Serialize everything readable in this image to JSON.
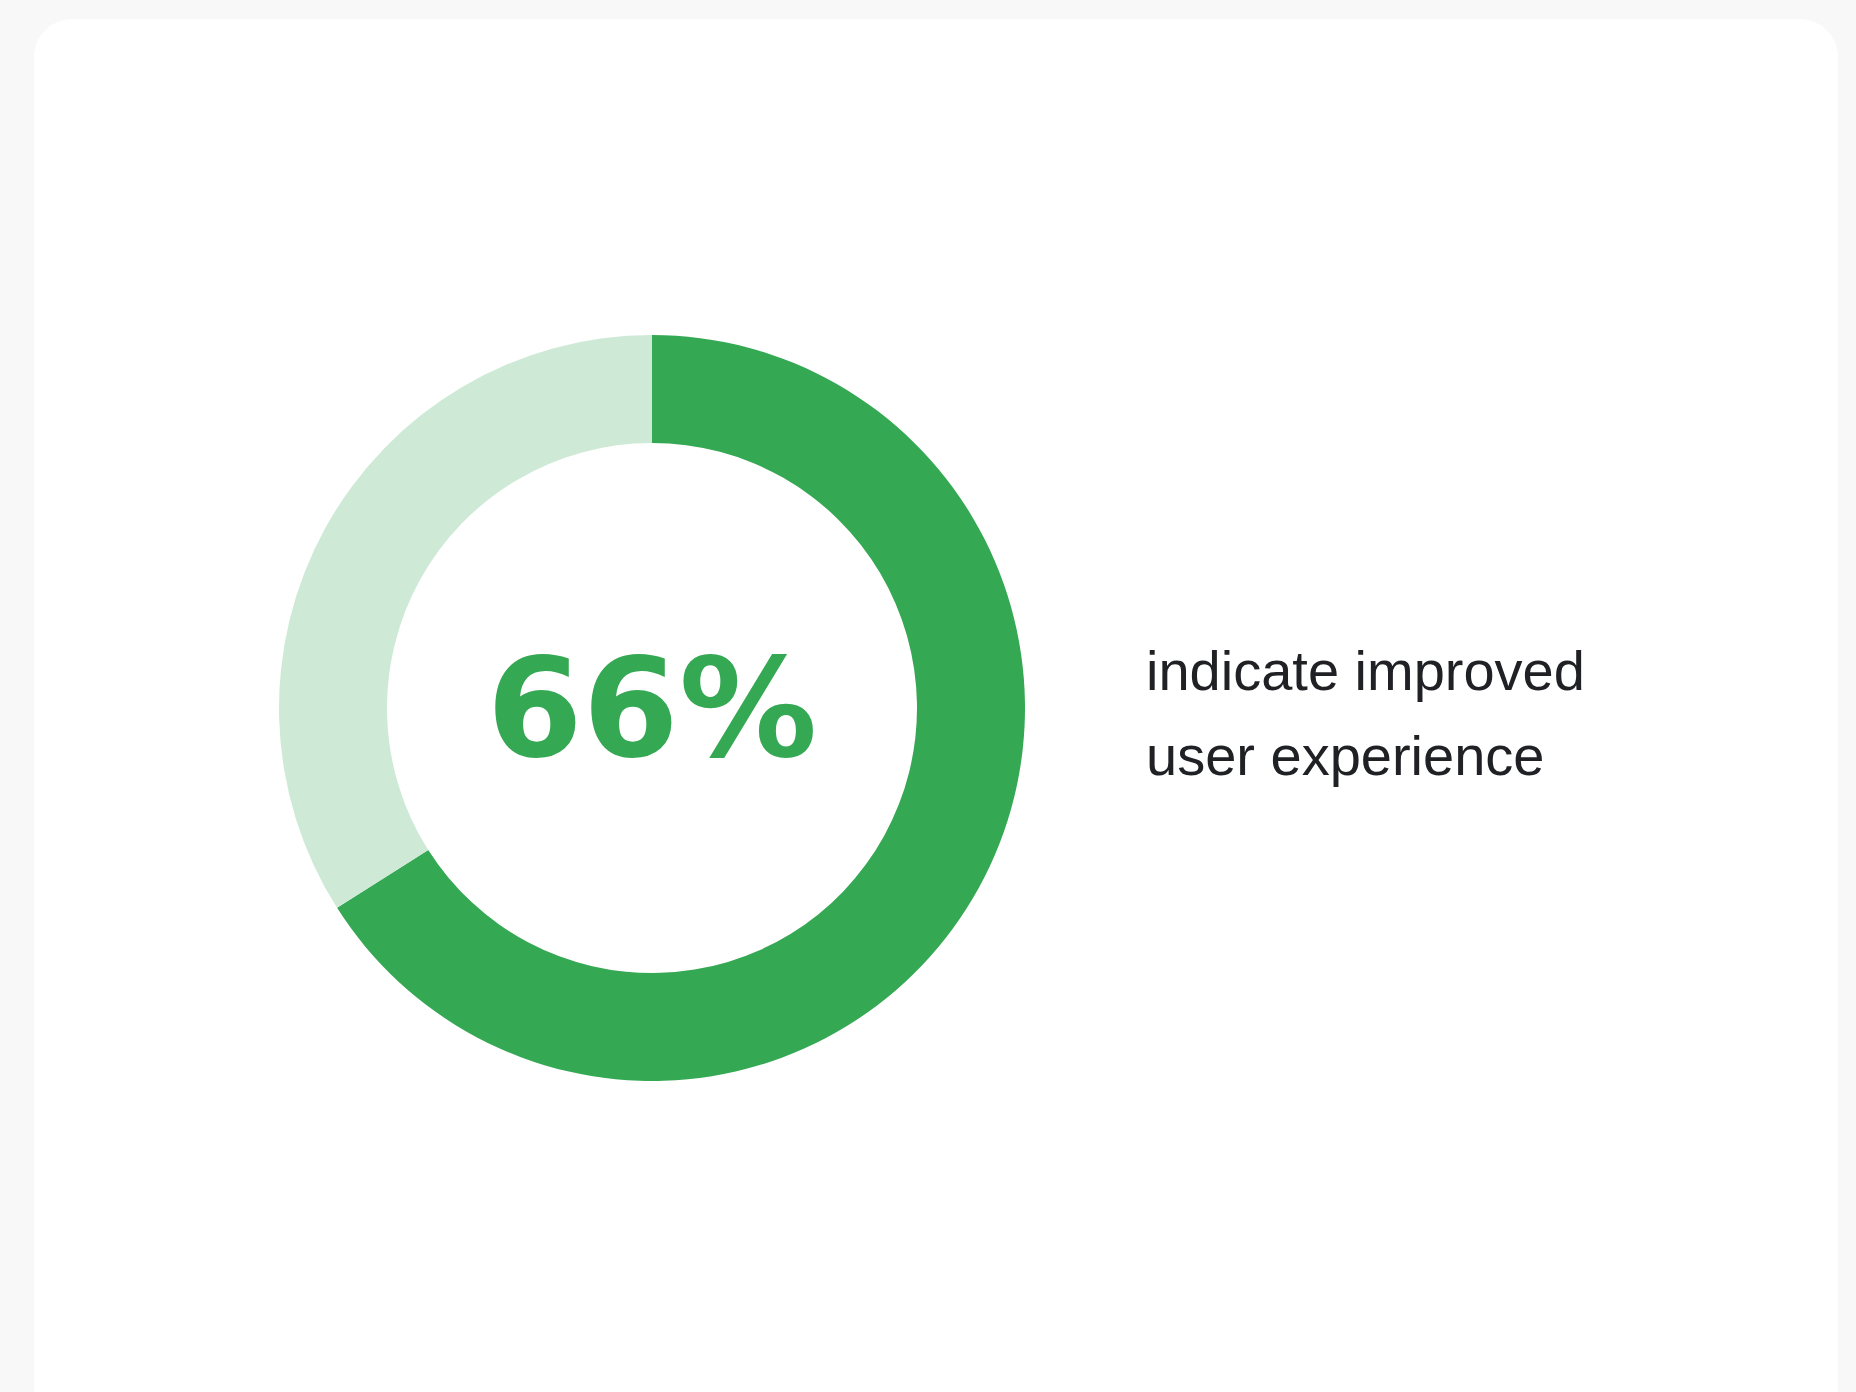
{
  "chart_data": {
    "type": "donut",
    "categories": [
      null,
      null
    ],
    "values": [
      66,
      34
    ],
    "colors": [
      "#34a853",
      "#ceead6"
    ],
    "annotations": [
      "66%",
      "indicate improved\nuser experience"
    ]
  }
}
